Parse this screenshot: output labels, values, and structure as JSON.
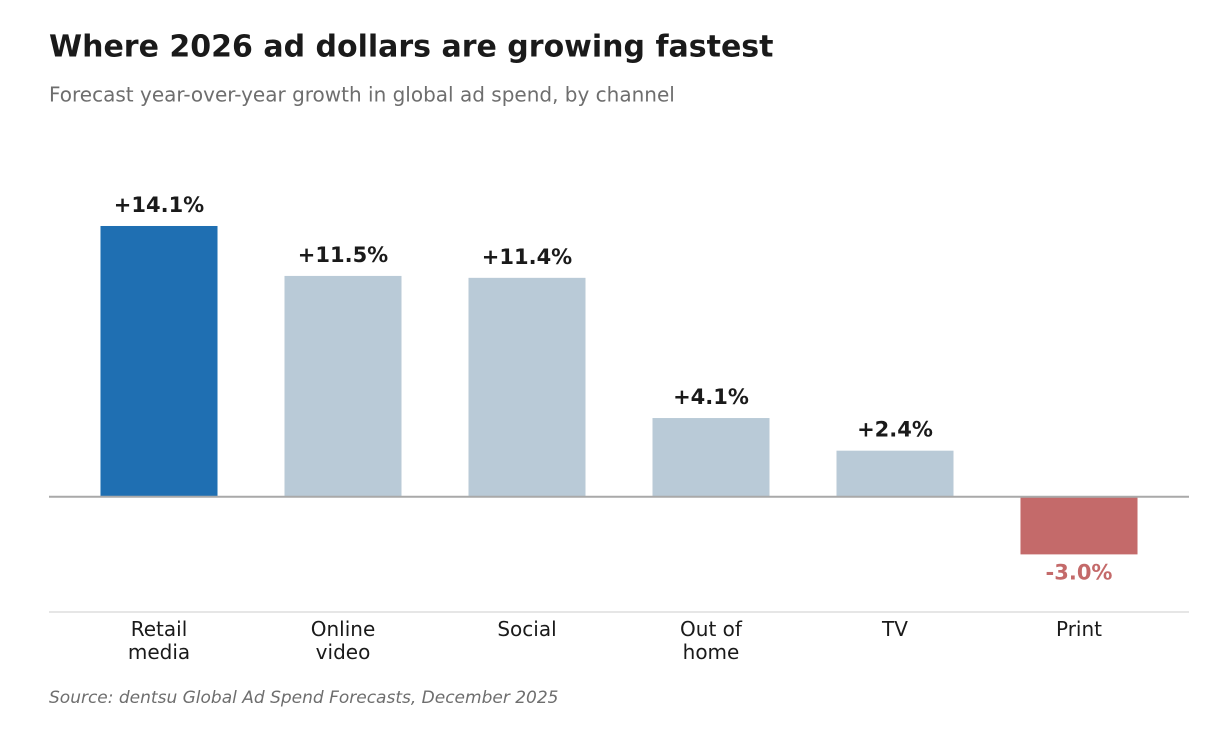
{
  "chart_data": {
    "type": "bar",
    "title": "Where 2026 ad dollars are growing fastest",
    "subtitle": "Forecast year-over-year growth in global ad spend, by channel",
    "source": "Source: dentsu Global Ad Spend Forecasts, December 2025",
    "categories": [
      "Retail\nmedia",
      "Online\nvideo",
      "Social",
      "Out of\nhome",
      "TV",
      "Print"
    ],
    "values": [
      14.1,
      11.5,
      11.4,
      4.1,
      2.4,
      -3.0
    ],
    "value_labels": [
      "+14.1%",
      "+11.5%",
      "+11.4%",
      "+4.1%",
      "+2.4%",
      "-3.0%"
    ],
    "colors": [
      "#1f6fb2",
      "#b9cad7",
      "#b9cad7",
      "#b9cad7",
      "#b9cad7",
      "#c46a6a"
    ],
    "ylim": [
      -6,
      16
    ]
  }
}
